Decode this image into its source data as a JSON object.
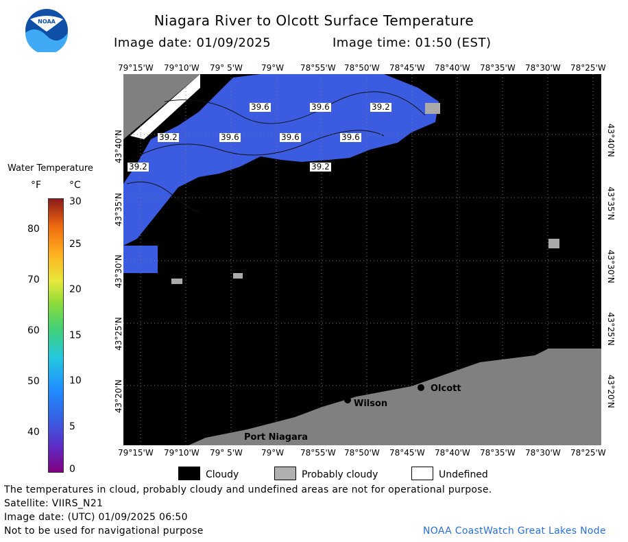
{
  "header": {
    "title": "Niagara River to Olcott Surface Temperature",
    "image_date": "Image date: 01/09/2025",
    "image_time": "Image time: 01:50 (EST)"
  },
  "logo": {
    "text": "NOAA"
  },
  "colorbar": {
    "title": "Water Temperature",
    "unit_f": "°F",
    "unit_c": "°C",
    "f_ticks": [
      "80",
      "70",
      "60",
      "50",
      "40"
    ],
    "c_ticks": [
      "30",
      "25",
      "20",
      "15",
      "10",
      "5",
      "0"
    ],
    "range_c": [
      0,
      30
    ]
  },
  "axes": {
    "lon_ticks": [
      "79°15'W",
      "79°10'W",
      "79° 5'W",
      "79°W",
      "78°55'W",
      "78°50'W",
      "78°45'W",
      "78°40'W",
      "78°35'W",
      "78°30'W",
      "78°25'W"
    ],
    "lat_ticks": [
      "43°40'N",
      "43°35'N",
      "43°30'N",
      "43°25'N",
      "43°20'N"
    ]
  },
  "isotherm_labels": [
    "39.6",
    "39.6",
    "39.2",
    "39.2",
    "39.6",
    "39.6",
    "39.6",
    "39.2",
    "39.2"
  ],
  "places": {
    "olcott": "Olcott",
    "wilson": "Wilson",
    "port_niagara": "Port Niagara"
  },
  "legend": {
    "cloudy": "Cloudy",
    "probably_cloudy": "Probably cloudy",
    "undefined": "Undefined"
  },
  "footer": {
    "note": "The temperatures in cloud, probably cloudy and undefined areas are not for operational purpose.",
    "satellite": "Satellite: VIIRS_N21",
    "utc_date": "Image date: (UTC) 01/09/2025  06:50",
    "nav_warning": "Not to be used for navigational purpose",
    "credit": "NOAA CoastWatch Great Lakes Node"
  },
  "colors": {
    "water": "#3b5be0",
    "cloud": "#000000",
    "land": "#808080",
    "credit": "#2a6fd6"
  }
}
